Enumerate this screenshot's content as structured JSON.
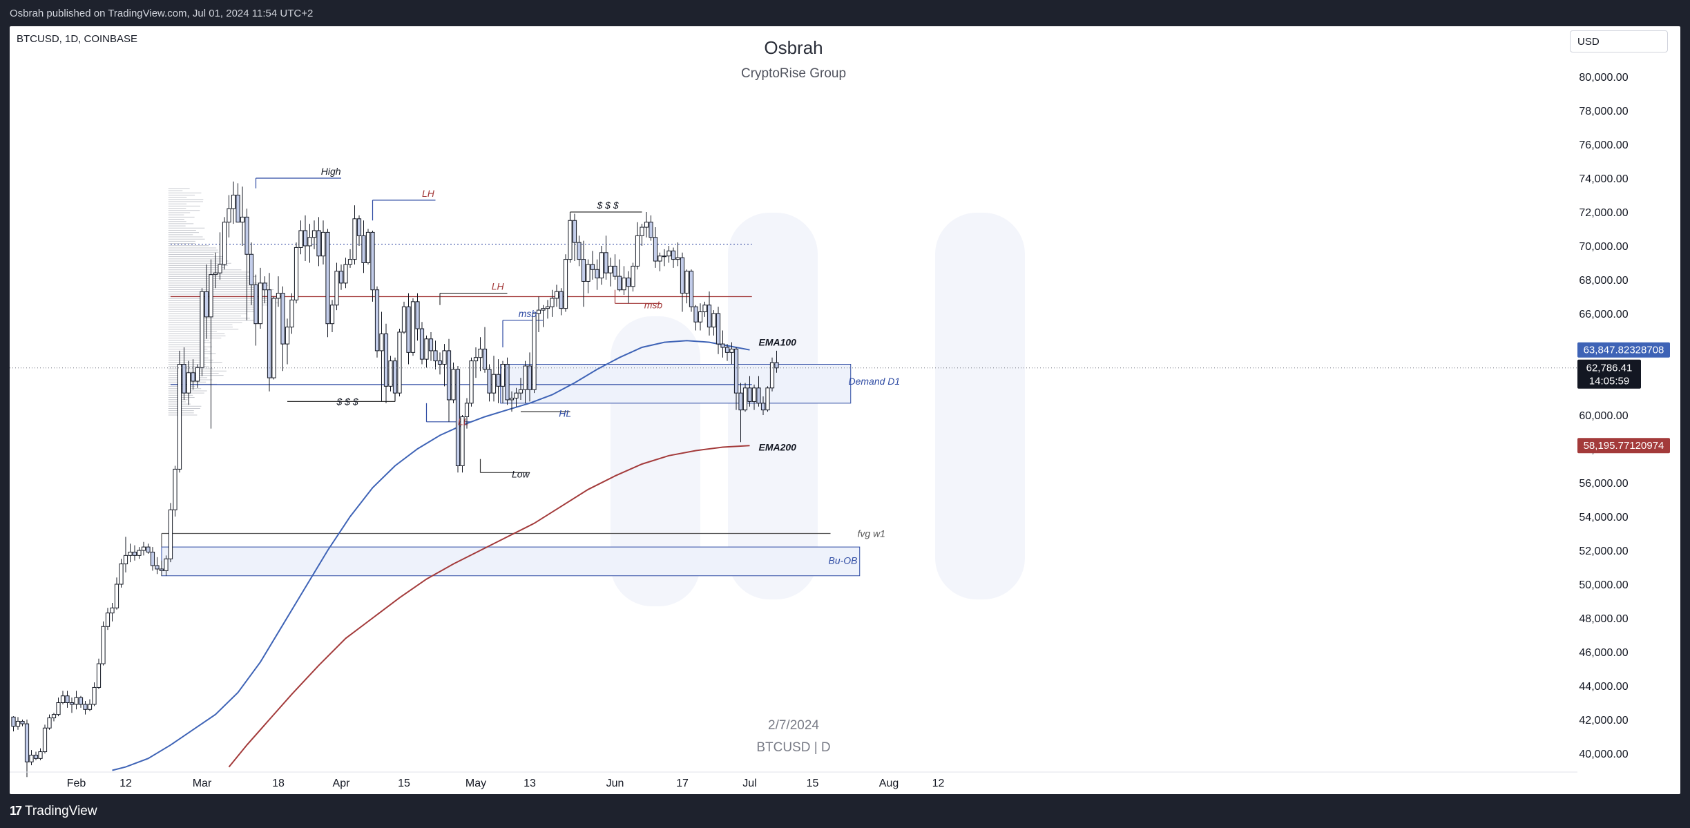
{
  "header": {
    "published": "Osbrah published on TradingView.com, Jul 01, 2024 11:54 UTC+2"
  },
  "symbol": "BTCUSD, 1D, COINBASE",
  "currency": "USD",
  "title": "Osbrah",
  "subtitle": "CryptoRise Group",
  "watermark": {
    "date": "2/7/2024",
    "symbol": "BTCUSD | D"
  },
  "footer": {
    "brand": "TradingView"
  },
  "colors": {
    "up": "#ffffff",
    "down": "#c3cdea",
    "wick": "#131722",
    "ema100": "#3e63b6",
    "ema200": "#a33a3a",
    "box": "#eef2fb",
    "boxBorder": "#2d4aa3"
  },
  "chart_data": {
    "type": "candlestick",
    "timeframe": "1D",
    "ylim": [
      39000,
      82000
    ],
    "yticks": [
      40000,
      42000,
      44000,
      46000,
      48000,
      50000,
      52000,
      54000,
      56000,
      58000,
      60000,
      62000,
      64000,
      66000,
      68000,
      70000,
      72000,
      74000,
      76000,
      78000,
      80000
    ],
    "ytick_labels": [
      "40,000.00",
      "42,000.00",
      "44,000.00",
      "46,000.00",
      "48,000.00",
      "50,000.00",
      "52,000.00",
      "54,000.00",
      "56,000.00",
      "58,000.00",
      "60,000.00",
      "62,000.00",
      "64,000.00",
      "66,000.00",
      "68,000.00",
      "70,000.00",
      "72,000.00",
      "74,000.00",
      "76,000.00",
      "78,000.00",
      "80,000.00"
    ],
    "xticks": [
      {
        "day": 14,
        "label": "Feb"
      },
      {
        "day": 25,
        "label": "12"
      },
      {
        "day": 42,
        "label": "Mar"
      },
      {
        "day": 59,
        "label": "18"
      },
      {
        "day": 73,
        "label": "Apr"
      },
      {
        "day": 87,
        "label": "15"
      },
      {
        "day": 103,
        "label": "May"
      },
      {
        "day": 115,
        "label": "13"
      },
      {
        "day": 134,
        "label": "Jun"
      },
      {
        "day": 149,
        "label": "17"
      },
      {
        "day": 164,
        "label": "Jul"
      },
      {
        "day": 178,
        "label": "15"
      },
      {
        "day": 195,
        "label": "Aug"
      },
      {
        "day": 206,
        "label": "12"
      }
    ],
    "candles": [
      [
        42150,
        42200,
        41300,
        41600
      ],
      [
        41600,
        42150,
        41400,
        41900
      ],
      [
        41900,
        42000,
        41600,
        41750
      ],
      [
        41750,
        42000,
        38600,
        39500
      ],
      [
        39500,
        40200,
        39300,
        39900
      ],
      [
        39900,
        40100,
        39600,
        39700
      ],
      [
        39700,
        40300,
        39600,
        40100
      ],
      [
        40100,
        41700,
        40000,
        41500
      ],
      [
        41500,
        42300,
        41400,
        42100
      ],
      [
        42100,
        42400,
        41900,
        42300
      ],
      [
        42300,
        43300,
        42200,
        43000
      ],
      [
        43000,
        43700,
        42900,
        43400
      ],
      [
        43400,
        43700,
        42700,
        43000
      ],
      [
        43000,
        43300,
        42400,
        42900
      ],
      [
        42900,
        43700,
        42600,
        43300
      ],
      [
        43300,
        43400,
        42700,
        42900
      ],
      [
        42900,
        43100,
        42300,
        42600
      ],
      [
        42600,
        43200,
        42500,
        42900
      ],
      [
        42900,
        44200,
        42800,
        43900
      ],
      [
        43900,
        45600,
        43800,
        45300
      ],
      [
        45300,
        47800,
        45200,
        47500
      ],
      [
        47500,
        48600,
        47300,
        48300
      ],
      [
        48300,
        48900,
        47800,
        48600
      ],
      [
        48600,
        50400,
        48500,
        50000
      ],
      [
        50000,
        51500,
        49800,
        51200
      ],
      [
        51200,
        52800,
        50700,
        51700
      ],
      [
        51700,
        52400,
        51300,
        51900
      ],
      [
        51900,
        52300,
        51400,
        51700
      ],
      [
        51700,
        52200,
        51500,
        52000
      ],
      [
        52000,
        52500,
        51700,
        52200
      ],
      [
        52200,
        52400,
        51800,
        51900
      ],
      [
        51900,
        52200,
        50800,
        51100
      ],
      [
        51100,
        51600,
        50600,
        50900
      ],
      [
        50900,
        51400,
        50500,
        50800
      ],
      [
        50800,
        51700,
        50500,
        51500
      ],
      [
        51500,
        54800,
        51300,
        54400
      ],
      [
        54400,
        57000,
        54000,
        56800
      ],
      [
        56800,
        63800,
        56600,
        63000
      ],
      [
        63000,
        64000,
        60900,
        61300
      ],
      [
        61300,
        63200,
        60600,
        62500
      ],
      [
        62500,
        63300,
        61500,
        62000
      ],
      [
        62000,
        63000,
        61600,
        62800
      ],
      [
        62800,
        67500,
        62300,
        67300
      ],
      [
        67300,
        68900,
        64500,
        65800
      ],
      [
        65800,
        69200,
        59200,
        68300
      ],
      [
        68300,
        69600,
        67500,
        68400
      ],
      [
        68400,
        70800,
        68000,
        68900
      ],
      [
        68900,
        71700,
        68600,
        71400
      ],
      [
        71400,
        73000,
        70500,
        72200
      ],
      [
        72200,
        73800,
        71300,
        73000
      ],
      [
        73000,
        73700,
        71800,
        71400
      ],
      [
        71400,
        73500,
        70000,
        71700
      ],
      [
        71700,
        72200,
        65600,
        69500
      ],
      [
        69500,
        70200,
        66500,
        67700
      ],
      [
        67700,
        68300,
        64100,
        65400
      ],
      [
        65400,
        68700,
        65100,
        67800
      ],
      [
        67800,
        68200,
        66600,
        67400
      ],
      [
        67400,
        68400,
        61400,
        62200
      ],
      [
        62200,
        67000,
        62100,
        66900
      ],
      [
        66900,
        68200,
        66400,
        67200
      ],
      [
        67200,
        67600,
        62600,
        64200
      ],
      [
        64200,
        65700,
        63000,
        65200
      ],
      [
        65200,
        67200,
        64800,
        66800
      ],
      [
        66800,
        70200,
        66600,
        69900
      ],
      [
        69900,
        71500,
        69500,
        70900
      ],
      [
        70900,
        71800,
        69100,
        70000
      ],
      [
        70000,
        71300,
        69000,
        70500
      ],
      [
        70500,
        71500,
        69800,
        70900
      ],
      [
        70900,
        71700,
        68800,
        69400
      ],
      [
        69400,
        71500,
        68900,
        70800
      ],
      [
        70800,
        71000,
        64600,
        65400
      ],
      [
        65400,
        66800,
        64900,
        66500
      ],
      [
        66500,
        69000,
        66200,
        68500
      ],
      [
        68500,
        68900,
        67400,
        67800
      ],
      [
        67800,
        69300,
        67500,
        68900
      ],
      [
        68900,
        69800,
        68700,
        69200
      ],
      [
        69200,
        72400,
        68900,
        71600
      ],
      [
        71600,
        71800,
        70000,
        70600
      ],
      [
        70600,
        71500,
        68400,
        69000
      ],
      [
        69000,
        71000,
        68900,
        70800
      ],
      [
        70800,
        70900,
        66700,
        67400
      ],
      [
        67400,
        67600,
        63400,
        63800
      ],
      [
        63800,
        66100,
        60800,
        64800
      ],
      [
        64800,
        65400,
        60700,
        61700
      ],
      [
        61700,
        63500,
        61400,
        63200
      ],
      [
        63200,
        63400,
        60800,
        61300
      ],
      [
        61300,
        65100,
        61100,
        64900
      ],
      [
        64900,
        66700,
        64800,
        66400
      ],
      [
        66400,
        67200,
        63000,
        63700
      ],
      [
        63700,
        66900,
        63500,
        66700
      ],
      [
        66700,
        67200,
        64400,
        65100
      ],
      [
        65100,
        65500,
        63000,
        63300
      ],
      [
        63300,
        64700,
        62800,
        64500
      ],
      [
        64500,
        64900,
        63200,
        63800
      ],
      [
        63800,
        64400,
        62700,
        63200
      ],
      [
        63200,
        63700,
        62400,
        63000
      ],
      [
        63000,
        64200,
        61700,
        63800
      ],
      [
        63800,
        64500,
        59600,
        60900
      ],
      [
        60900,
        63100,
        60700,
        62700
      ],
      [
        62700,
        62900,
        56600,
        57000
      ],
      [
        57000,
        60000,
        56600,
        59900
      ],
      [
        59900,
        61000,
        59200,
        60700
      ],
      [
        60700,
        63400,
        60500,
        63200
      ],
      [
        63200,
        64000,
        62200,
        63400
      ],
      [
        63400,
        64600,
        62600,
        63900
      ],
      [
        63900,
        65200,
        62500,
        62700
      ],
      [
        62700,
        63000,
        60800,
        61300
      ],
      [
        61300,
        63500,
        60800,
        62400
      ],
      [
        62400,
        63300,
        60700,
        61700
      ],
      [
        61700,
        63200,
        60700,
        63000
      ],
      [
        63000,
        63400,
        60600,
        60900
      ],
      [
        60900,
        61400,
        60200,
        61000
      ],
      [
        61000,
        61600,
        60500,
        61300
      ],
      [
        61300,
        62200,
        60900,
        61500
      ],
      [
        61500,
        63200,
        60700,
        62900
      ],
      [
        62900,
        63700,
        60800,
        61500
      ],
      [
        61500,
        66000,
        61300,
        66000
      ],
      [
        66000,
        67000,
        64900,
        66200
      ],
      [
        66200,
        66500,
        65200,
        66300
      ],
      [
        66300,
        66800,
        65700,
        66400
      ],
      [
        66400,
        67400,
        65800,
        66900
      ],
      [
        66900,
        67700,
        66400,
        67300
      ],
      [
        67300,
        67500,
        65900,
        66300
      ],
      [
        66300,
        69500,
        66100,
        69200
      ],
      [
        69200,
        71900,
        69000,
        71500
      ],
      [
        71500,
        71900,
        69100,
        70200
      ],
      [
        70200,
        70600,
        68800,
        69200
      ],
      [
        69200,
        70300,
        66400,
        67900
      ],
      [
        67900,
        69200,
        67200,
        68900
      ],
      [
        68900,
        69700,
        68000,
        68600
      ],
      [
        68600,
        69200,
        67400,
        68100
      ],
      [
        68100,
        70000,
        67700,
        69600
      ],
      [
        69600,
        70600,
        68000,
        68400
      ],
      [
        68400,
        69300,
        67600,
        68800
      ],
      [
        68800,
        69500,
        68000,
        68200
      ],
      [
        68200,
        69200,
        67300,
        67400
      ],
      [
        67400,
        68800,
        67100,
        68100
      ],
      [
        68100,
        68500,
        66600,
        67600
      ],
      [
        67600,
        69000,
        67300,
        68800
      ],
      [
        68800,
        71400,
        68600,
        70600
      ],
      [
        70600,
        71300,
        70000,
        71100
      ],
      [
        71100,
        72000,
        70500,
        71400
      ],
      [
        71400,
        71800,
        70300,
        70500
      ],
      [
        70500,
        71100,
        68700,
        69100
      ],
      [
        69100,
        69600,
        68500,
        69400
      ],
      [
        69400,
        69800,
        68800,
        69400
      ],
      [
        69400,
        70000,
        69000,
        69700
      ],
      [
        69700,
        69900,
        68700,
        69200
      ],
      [
        69200,
        70200,
        68800,
        69300
      ],
      [
        69300,
        69600,
        66100,
        67200
      ],
      [
        67200,
        68600,
        66600,
        68500
      ],
      [
        68500,
        68600,
        66100,
        66400
      ],
      [
        66400,
        66500,
        65000,
        65500
      ],
      [
        65500,
        66600,
        65000,
        66100
      ],
      [
        66100,
        66700,
        65800,
        66500
      ],
      [
        66500,
        67300,
        64700,
        65200
      ],
      [
        65200,
        66200,
        64700,
        66000
      ],
      [
        66000,
        66400,
        63600,
        64200
      ],
      [
        64200,
        65000,
        63400,
        64000
      ],
      [
        64000,
        64200,
        63200,
        63700
      ],
      [
        63700,
        64300,
        63000,
        63900
      ],
      [
        63900,
        64000,
        60300,
        61300
      ],
      [
        61300,
        61900,
        58400,
        60300
      ],
      [
        60300,
        61900,
        60200,
        61600
      ],
      [
        61600,
        62300,
        60500,
        60800
      ],
      [
        60800,
        61800,
        60300,
        61600
      ],
      [
        61600,
        62300,
        60500,
        60700
      ],
      [
        60700,
        61100,
        60000,
        60300
      ],
      [
        60300,
        61700,
        60200,
        61600
      ],
      [
        61600,
        63400,
        61400,
        63100
      ],
      [
        63100,
        63800,
        62500,
        62786
      ]
    ],
    "ema100": [
      [
        22,
        39000
      ],
      [
        25,
        39200
      ],
      [
        30,
        39700
      ],
      [
        35,
        40500
      ],
      [
        40,
        41400
      ],
      [
        45,
        42300
      ],
      [
        50,
        43600
      ],
      [
        55,
        45400
      ],
      [
        60,
        47600
      ],
      [
        65,
        49800
      ],
      [
        70,
        52000
      ],
      [
        75,
        54000
      ],
      [
        80,
        55700
      ],
      [
        85,
        57000
      ],
      [
        90,
        58000
      ],
      [
        95,
        58800
      ],
      [
        100,
        59400
      ],
      [
        105,
        59900
      ],
      [
        110,
        60300
      ],
      [
        115,
        60700
      ],
      [
        120,
        61200
      ],
      [
        125,
        61900
      ],
      [
        130,
        62700
      ],
      [
        135,
        63400
      ],
      [
        140,
        64000
      ],
      [
        145,
        64300
      ],
      [
        150,
        64400
      ],
      [
        155,
        64300
      ],
      [
        161,
        64000
      ],
      [
        164,
        63848
      ]
    ],
    "ema200": [
      [
        48,
        39200
      ],
      [
        52,
        40500
      ],
      [
        57,
        42000
      ],
      [
        62,
        43500
      ],
      [
        68,
        45200
      ],
      [
        74,
        46800
      ],
      [
        80,
        48000
      ],
      [
        86,
        49200
      ],
      [
        92,
        50300
      ],
      [
        98,
        51200
      ],
      [
        104,
        52000
      ],
      [
        110,
        52800
      ],
      [
        116,
        53600
      ],
      [
        122,
        54600
      ],
      [
        128,
        55600
      ],
      [
        134,
        56400
      ],
      [
        140,
        57100
      ],
      [
        146,
        57600
      ],
      [
        152,
        57900
      ],
      [
        158,
        58100
      ],
      [
        164,
        58196
      ]
    ],
    "last_price": "62,786.41",
    "countdown": "14:05:59",
    "ema100_value": "63,847.82328708",
    "ema200_value": "58,195.77120974",
    "labels": {
      "high": "High",
      "lh1": "LH",
      "lh2": "LH",
      "sss_top": "$ $ $",
      "sss_left": "$ $ $",
      "msb1": "msb",
      "msb2": "msb",
      "ll": "LL",
      "hl": "HL",
      "low": "Low",
      "ema100": "EMA100",
      "ema200": "EMA200",
      "demand": "Demand D1",
      "fvg": "fvg w1",
      "buob": "Bu-OB"
    }
  }
}
